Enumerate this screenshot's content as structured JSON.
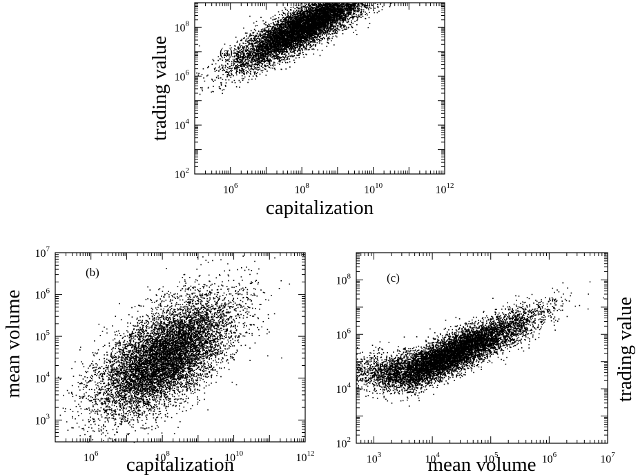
{
  "chart_data": [
    {
      "id": "a",
      "type": "scatter",
      "panel_label": "(a)",
      "xlabel": "capitalization",
      "ylabel": "trading value",
      "x_scale": "log",
      "y_scale": "log",
      "xlim": [
        100000.0,
        1000000000000.0
      ],
      "ylim": [
        100.0,
        1000000000.0
      ],
      "x_tick_labels": [
        {
          "base": "10",
          "exp": "6"
        },
        {
          "base": "10",
          "exp": "8"
        },
        {
          "base": "10",
          "exp": "10"
        },
        {
          "base": "10",
          "exp": "12"
        }
      ],
      "y_tick_labels": [
        {
          "base": "10",
          "exp": "2"
        },
        {
          "base": "10",
          "exp": "4"
        },
        {
          "base": "10",
          "exp": "6"
        },
        {
          "base": "10",
          "exp": "8"
        }
      ],
      "marker_color": "#000000",
      "points": [
        [
          1000000.0,
          20000.0
        ],
        [
          3000000.0,
          10000.0
        ],
        [
          10000000.0,
          40000.0
        ],
        [
          30000000.0,
          100000.0
        ],
        [
          100000000.0,
          300000.0
        ],
        [
          300000000.0,
          1000000.0
        ],
        [
          1000000000.0,
          3000000.0
        ],
        [
          3000000000.0,
          10000000.0
        ],
        [
          10000000000.0,
          40000000.0
        ],
        [
          50000000000.0,
          200000000.0
        ]
      ]
    },
    {
      "id": "b",
      "type": "scatter",
      "panel_label": "(b)",
      "xlabel": "capitalization",
      "ylabel": "mean volume",
      "x_scale": "log",
      "y_scale": "log",
      "xlim": [
        100000.0,
        1000000000000.0
      ],
      "ylim": [
        300.0,
        10000000.0
      ],
      "x_tick_labels": [
        {
          "base": "10",
          "exp": "6"
        },
        {
          "base": "10",
          "exp": "8"
        },
        {
          "base": "10",
          "exp": "10"
        },
        {
          "base": "10",
          "exp": "12"
        }
      ],
      "y_tick_labels": [
        {
          "base": "10",
          "exp": "3"
        },
        {
          "base": "10",
          "exp": "4"
        },
        {
          "base": "10",
          "exp": "5"
        },
        {
          "base": "10",
          "exp": "6"
        },
        {
          "base": "10",
          "exp": "7"
        }
      ],
      "marker_color": "#000000",
      "points": [
        [
          1000000.0,
          10000.0
        ],
        [
          3000000.0,
          8000.0
        ],
        [
          10000000.0,
          12000.0
        ],
        [
          30000000.0,
          20000.0
        ],
        [
          100000000.0,
          30000.0
        ],
        [
          300000000.0,
          60000.0
        ],
        [
          1000000000.0,
          150000.0
        ],
        [
          3000000000.0,
          300000.0
        ],
        [
          10000000000.0,
          800000.0
        ],
        [
          50000000000.0,
          3000000.0
        ]
      ]
    },
    {
      "id": "c",
      "type": "scatter",
      "panel_label": "(c)",
      "xlabel": "mean volume",
      "ylabel": "trading value",
      "x_scale": "log",
      "y_scale": "log",
      "xlim": [
        500.0,
        10000000.0
      ],
      "ylim": [
        100.0,
        1000000000.0
      ],
      "x_tick_labels": [
        {
          "base": "10",
          "exp": "3"
        },
        {
          "base": "10",
          "exp": "4"
        },
        {
          "base": "10",
          "exp": "5"
        },
        {
          "base": "10",
          "exp": "6"
        },
        {
          "base": "10",
          "exp": "7"
        }
      ],
      "y_tick_labels": [
        {
          "base": "10",
          "exp": "2"
        },
        {
          "base": "10",
          "exp": "4"
        },
        {
          "base": "10",
          "exp": "6"
        },
        {
          "base": "10",
          "exp": "8"
        }
      ],
      "marker_color": "#000000",
      "points": [
        [
          1000.0,
          40000.0
        ],
        [
          3000.0,
          40000.0
        ],
        [
          10000.0,
          80000.0
        ],
        [
          30000.0,
          200000.0
        ],
        [
          100000.0,
          500000.0
        ],
        [
          300000.0,
          1500000.0
        ],
        [
          1000000.0,
          5000000.0
        ],
        [
          3000000.0,
          20000000.0
        ],
        [
          5000000.0,
          100000000.0
        ]
      ]
    }
  ]
}
